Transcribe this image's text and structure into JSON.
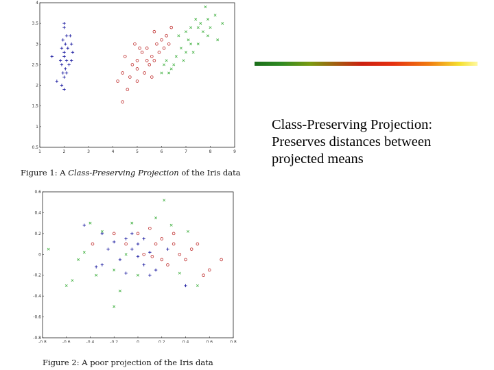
{
  "figure1": {
    "caption_prefix": "Figure 1:  A ",
    "caption_italic": "Class-Preserving Projection",
    "caption_suffix": " of the Iris data",
    "xticks": [
      "1",
      "2",
      "3",
      "4",
      "5",
      "6",
      "7",
      "8",
      "9"
    ],
    "yticks": [
      "0.5",
      "1",
      "1.5",
      "2",
      "2.5",
      "3",
      "3.5",
      "4"
    ]
  },
  "figure2": {
    "caption": "Figure 2:  A poor projection of the Iris data",
    "xticks": [
      "-0.8",
      "-0.6",
      "-0.4",
      "-0.2",
      "0",
      "0.2",
      "0.4",
      "0.6",
      "0.8"
    ],
    "yticks": [
      "0.6",
      "0.4",
      "0.2",
      "0",
      "-0.2",
      "-0.4",
      "-0.6",
      "-0.8"
    ]
  },
  "colors": {
    "setosa": "#1a1aa0",
    "versicolor": "#c03030",
    "virginica": "#40b040"
  },
  "chart_data": [
    {
      "type": "scatter",
      "title": "",
      "xlabel": "",
      "ylabel": "",
      "xlim": [
        1,
        9
      ],
      "ylim": [
        0.5,
        4
      ],
      "grid": false,
      "series": [
        {
          "marker": "+",
          "color": "#1a1aa0",
          "points": [
            [
              2.0,
              3.5
            ],
            [
              2.05,
              3.0
            ],
            [
              1.95,
              3.1
            ],
            [
              2.1,
              3.2
            ],
            [
              1.9,
              2.9
            ],
            [
              2.0,
              2.8
            ],
            [
              2.15,
              2.9
            ],
            [
              1.85,
              2.6
            ],
            [
              2.0,
              2.7
            ],
            [
              2.1,
              2.6
            ],
            [
              1.9,
              2.5
            ],
            [
              2.05,
              2.4
            ],
            [
              2.2,
              2.5
            ],
            [
              1.95,
              2.3
            ],
            [
              2.1,
              2.3
            ],
            [
              2.3,
              2.6
            ],
            [
              2.25,
              3.2
            ],
            [
              1.5,
              2.7
            ],
            [
              2.0,
              2.2
            ],
            [
              1.7,
              2.1
            ],
            [
              2.35,
              2.8
            ],
            [
              2.0,
              3.4
            ],
            [
              2.3,
              3.0
            ],
            [
              2.0,
              1.9
            ],
            [
              1.9,
              2.0
            ]
          ]
        },
        {
          "marker": "o",
          "color": "#c03030",
          "points": [
            [
              4.5,
              2.7
            ],
            [
              4.8,
              2.5
            ],
            [
              5.0,
              2.6
            ],
            [
              5.2,
              2.8
            ],
            [
              5.4,
              2.9
            ],
            [
              5.0,
              2.4
            ],
            [
              5.6,
              2.7
            ],
            [
              5.8,
              3.0
            ],
            [
              6.0,
              3.1
            ],
            [
              5.5,
              2.5
            ],
            [
              4.7,
              2.2
            ],
            [
              5.3,
              2.3
            ],
            [
              5.9,
              2.8
            ],
            [
              6.2,
              3.2
            ],
            [
              5.1,
              2.9
            ],
            [
              4.4,
              2.3
            ],
            [
              5.7,
              3.3
            ],
            [
              6.1,
              2.9
            ],
            [
              4.6,
              1.9
            ],
            [
              5.0,
              2.1
            ],
            [
              5.4,
              2.6
            ],
            [
              6.4,
              3.4
            ],
            [
              4.2,
              2.1
            ],
            [
              5.6,
              2.2
            ],
            [
              4.9,
              3.0
            ],
            [
              5.7,
              2.6
            ],
            [
              6.3,
              3.0
            ],
            [
              4.4,
              1.6
            ]
          ]
        },
        {
          "marker": "x",
          "color": "#40b040",
          "points": [
            [
              7.8,
              3.9
            ],
            [
              8.2,
              3.7
            ],
            [
              7.5,
              3.4
            ],
            [
              7.9,
              3.2
            ],
            [
              7.2,
              3.0
            ],
            [
              7.0,
              3.3
            ],
            [
              6.8,
              2.9
            ],
            [
              6.6,
              2.7
            ],
            [
              7.4,
              3.6
            ],
            [
              7.1,
              3.1
            ],
            [
              6.9,
              2.6
            ],
            [
              7.6,
              3.5
            ],
            [
              8.3,
              3.1
            ],
            [
              7.3,
              2.8
            ],
            [
              6.7,
              3.2
            ],
            [
              6.5,
              2.5
            ],
            [
              6.2,
              2.6
            ],
            [
              7.7,
              3.3
            ],
            [
              8.0,
              3.4
            ],
            [
              6.4,
              2.4
            ],
            [
              7.0,
              2.8
            ],
            [
              6.3,
              2.3
            ],
            [
              7.5,
              3.0
            ],
            [
              8.5,
              3.5
            ],
            [
              7.9,
              3.6
            ],
            [
              6.1,
              2.5
            ],
            [
              7.2,
              3.4
            ],
            [
              6.0,
              2.3
            ]
          ]
        }
      ]
    },
    {
      "type": "scatter",
      "title": "",
      "xlabel": "",
      "ylabel": "",
      "xlim": [
        -0.8,
        0.8
      ],
      "ylim": [
        -0.8,
        0.6
      ],
      "grid": false,
      "series": [
        {
          "marker": "+",
          "color": "#1a1aa0",
          "points": [
            [
              -0.45,
              0.28
            ],
            [
              -0.3,
              0.2
            ],
            [
              -0.25,
              0.05
            ],
            [
              -0.3,
              -0.1
            ],
            [
              -0.1,
              0.15
            ],
            [
              -0.05,
              0.05
            ],
            [
              0.0,
              -0.02
            ],
            [
              0.05,
              -0.1
            ],
            [
              0.1,
              0.02
            ],
            [
              -0.15,
              -0.05
            ],
            [
              0.0,
              0.1
            ],
            [
              -0.05,
              0.2
            ],
            [
              0.15,
              -0.15
            ],
            [
              0.05,
              0.15
            ],
            [
              -0.35,
              -0.12
            ],
            [
              0.1,
              -0.2
            ],
            [
              0.25,
              0.05
            ],
            [
              -0.2,
              0.12
            ],
            [
              0.4,
              -0.3
            ],
            [
              -0.1,
              -0.18
            ]
          ]
        },
        {
          "marker": "o",
          "color": "#c03030",
          "points": [
            [
              0.1,
              0.25
            ],
            [
              0.2,
              0.15
            ],
            [
              0.3,
              0.1
            ],
            [
              0.35,
              0.0
            ],
            [
              0.4,
              -0.05
            ],
            [
              0.25,
              -0.1
            ],
            [
              0.15,
              0.1
            ],
            [
              0.05,
              0.0
            ],
            [
              0.2,
              -0.05
            ],
            [
              0.45,
              0.05
            ],
            [
              0.6,
              -0.15
            ],
            [
              0.7,
              -0.05
            ],
            [
              0.55,
              -0.2
            ],
            [
              -0.1,
              0.1
            ],
            [
              -0.2,
              0.2
            ],
            [
              0.0,
              0.2
            ],
            [
              -0.38,
              0.1
            ],
            [
              0.5,
              0.1
            ],
            [
              0.3,
              0.2
            ],
            [
              0.12,
              -0.02
            ]
          ]
        },
        {
          "marker": "x",
          "color": "#40b040",
          "points": [
            [
              0.22,
              0.52
            ],
            [
              0.28,
              0.28
            ],
            [
              -0.4,
              0.3
            ],
            [
              -0.3,
              0.22
            ],
            [
              -0.5,
              -0.05
            ],
            [
              -0.35,
              -0.2
            ],
            [
              -0.55,
              -0.25
            ],
            [
              -0.2,
              -0.15
            ],
            [
              -0.15,
              -0.35
            ],
            [
              -0.2,
              -0.5
            ],
            [
              -0.75,
              0.05
            ],
            [
              -0.45,
              0.02
            ],
            [
              0.0,
              -0.2
            ],
            [
              -0.1,
              0.0
            ],
            [
              0.35,
              -0.18
            ],
            [
              0.5,
              -0.3
            ],
            [
              -0.6,
              -0.3
            ],
            [
              0.15,
              0.35
            ],
            [
              -0.05,
              0.3
            ],
            [
              0.42,
              0.22
            ]
          ]
        }
      ]
    }
  ],
  "side_text": {
    "line1": "Class-Preserving Projection:",
    "line2": "Preserves distances between",
    "line3": "projected means"
  }
}
